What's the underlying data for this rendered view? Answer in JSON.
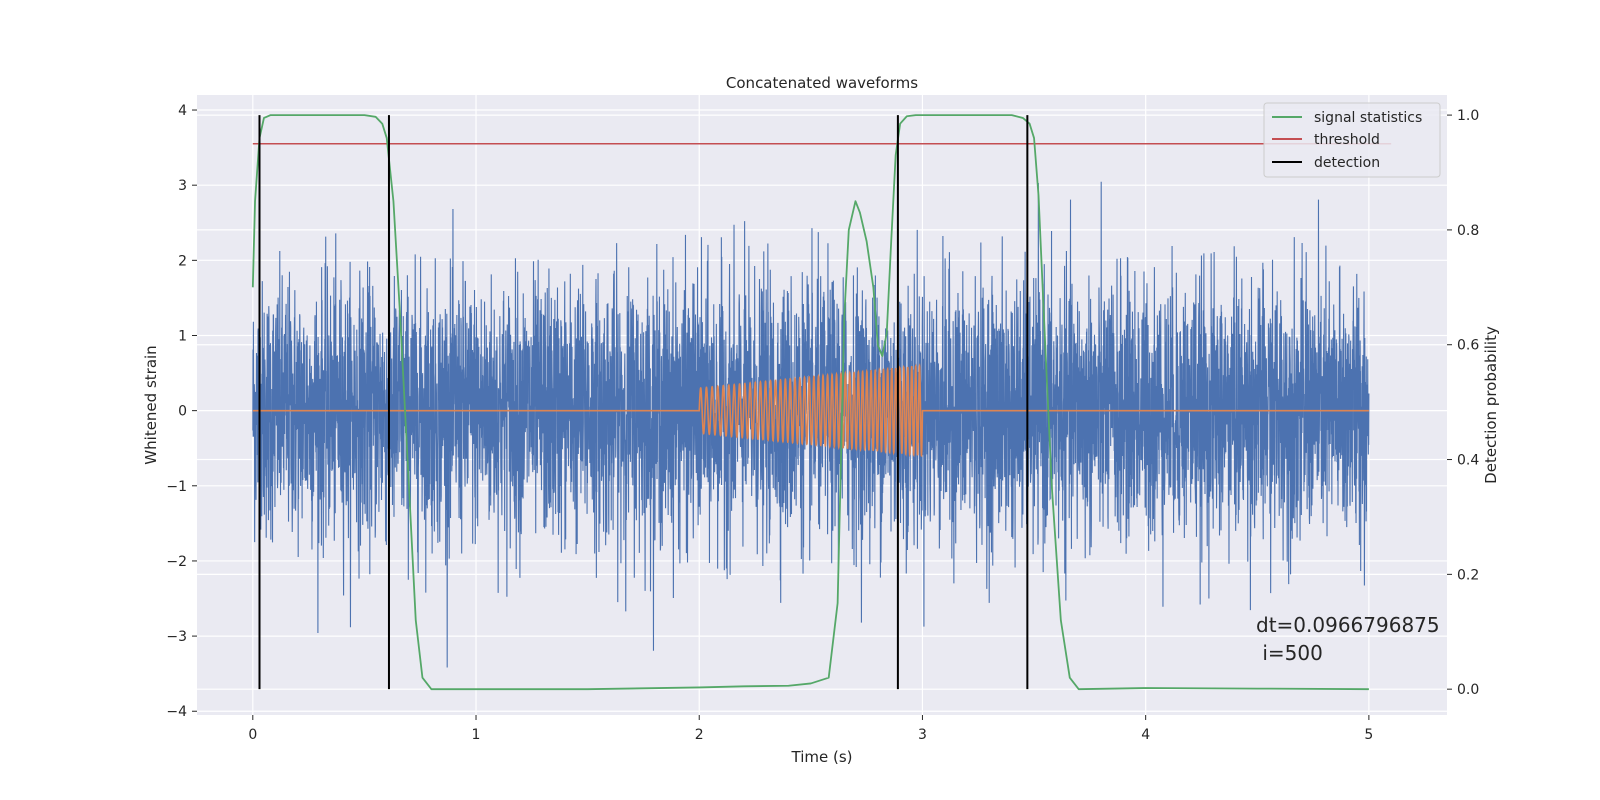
{
  "chart_data": {
    "type": "line",
    "title": "Concatenated waveforms",
    "xlabel": "Time (s)",
    "ylabel": "Whitened strain",
    "ylabel_right": "Detection probability",
    "xlim": [
      -0.25,
      5.35
    ],
    "ylim": [
      -4.05,
      4.2
    ],
    "ylim_right": [
      -0.045,
      1.035
    ],
    "x_ticks": [
      0,
      1,
      2,
      3,
      4,
      5
    ],
    "y_ticks": [
      -4,
      -3,
      -2,
      -1,
      0,
      1,
      2,
      3,
      4
    ],
    "y_ticks_right": [
      0.0,
      0.2,
      0.4,
      0.6,
      0.8,
      1.0
    ],
    "grid": true,
    "legend_position": "top-right",
    "legend": [
      {
        "label": "signal statistics",
        "color": "#55a868"
      },
      {
        "label": "threshold",
        "color": "#c44e52"
      },
      {
        "label": "detection",
        "color": "#000000"
      }
    ],
    "colors": {
      "strain": "#4c72b0",
      "chirp": "#dd8452",
      "signal_statistics": "#55a868",
      "threshold": "#c44e52",
      "detection": "#000000",
      "plot_background": "#eaeaf2",
      "grid": "#ffffff"
    },
    "series": [
      {
        "name": "",
        "axis": "left",
        "kind": "noise",
        "x_range": [
          0,
          5
        ],
        "std": 0.85,
        "min": -3.65,
        "max": 3.8
      },
      {
        "name": "",
        "axis": "left",
        "kind": "chirp",
        "x_range": [
          2,
          3
        ],
        "amplitude_start": 0.3,
        "amplitude_end": 0.6,
        "cycles_approx": 48
      },
      {
        "name": "signal statistics",
        "axis": "right",
        "x": [
          0,
          0.01,
          0.03,
          0.05,
          0.08,
          0.12,
          0.3,
          0.5,
          0.55,
          0.58,
          0.6,
          0.63,
          0.66,
          0.7,
          0.73,
          0.76,
          0.8,
          1.0,
          1.5,
          2.0,
          2.2,
          2.4,
          2.5,
          2.58,
          2.62,
          2.65,
          2.67,
          2.7,
          2.72,
          2.75,
          2.78,
          2.8,
          2.82,
          2.84,
          2.86,
          2.88,
          2.9,
          2.93,
          2.97,
          3.0,
          3.4,
          3.45,
          3.48,
          3.5,
          3.52,
          3.55,
          3.58,
          3.62,
          3.66,
          3.7,
          4.0,
          4.5,
          5.0
        ],
        "values": [
          0.7,
          0.85,
          0.96,
          0.995,
          1.0,
          1.0,
          1.0,
          1.0,
          0.997,
          0.985,
          0.96,
          0.85,
          0.65,
          0.35,
          0.12,
          0.02,
          0.0,
          0.0,
          0.0,
          0.003,
          0.005,
          0.006,
          0.01,
          0.02,
          0.15,
          0.65,
          0.8,
          0.85,
          0.83,
          0.78,
          0.7,
          0.6,
          0.58,
          0.62,
          0.78,
          0.93,
          0.985,
          0.998,
          1.0,
          1.0,
          1.0,
          0.995,
          0.985,
          0.96,
          0.86,
          0.6,
          0.35,
          0.12,
          0.02,
          0.0,
          0.002,
          0.001,
          0.0
        ]
      },
      {
        "name": "threshold",
        "axis": "right",
        "x": [
          0,
          5.1
        ],
        "values": [
          0.95,
          0.95
        ]
      },
      {
        "name": "detection",
        "axis": "right",
        "kind": "vlines",
        "x": [
          0.03,
          0.61,
          2.89,
          3.47
        ],
        "ymin": 0.0,
        "ymax": 1.0
      }
    ],
    "annotation": {
      "lines": [
        "dt=0.0966796875",
        " i=500"
      ],
      "position": "lower-right"
    }
  }
}
